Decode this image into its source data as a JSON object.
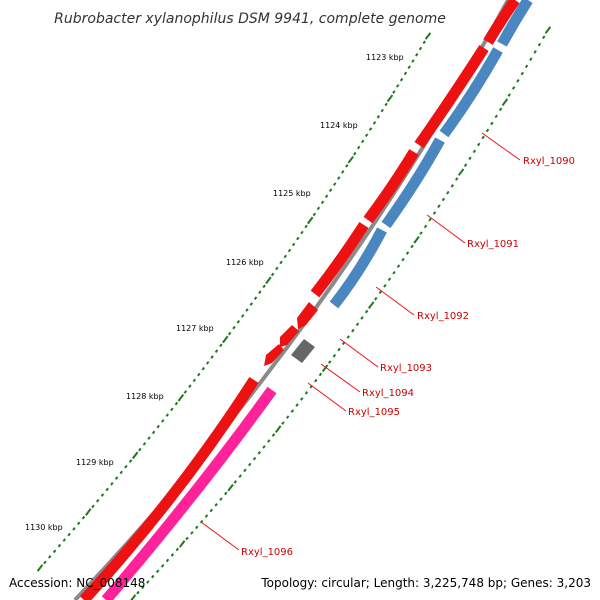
{
  "title": "Rubrobacter xylanophilus DSM 9941, complete genome",
  "ticks": [
    "1123 kbp",
    "1124 kbp",
    "1125 kbp",
    "1126 kbp",
    "1127 kbp",
    "1128 kbp",
    "1129 kbp",
    "1130 kbp"
  ],
  "genes": [
    {
      "label": "Rxyl_1090",
      "strand": "reverse",
      "color": "#4a86c0"
    },
    {
      "label": "Rxyl_1091",
      "strand": "reverse",
      "color": "#4a86c0"
    },
    {
      "label": "Rxyl_1092",
      "strand": "reverse",
      "color": "#4a86c0"
    },
    {
      "label": "Rxyl_1093",
      "strand": "forward",
      "color": "#ee1111"
    },
    {
      "label": "Rxyl_1094",
      "strand": "reverse",
      "color": "#666666"
    },
    {
      "label": "Rxyl_1095",
      "strand": "forward",
      "color": "#ee1111"
    },
    {
      "label": "Rxyl_1096",
      "strand": "reverse",
      "color": "#ff2299"
    }
  ],
  "colors": {
    "backbone": "#8a8a8a",
    "forward_cds": "#ee1111",
    "reverse_cds": "#4a86c0",
    "other_feature": "#ff2299",
    "tick": "#1a7a1a",
    "label_line": "#ee1111",
    "label_text": "#cc0000"
  },
  "footer": {
    "accession": "Accession: NC_008148",
    "stats": "Topology: circular; Length: 3,225,748 bp; Genes: 3,203"
  }
}
